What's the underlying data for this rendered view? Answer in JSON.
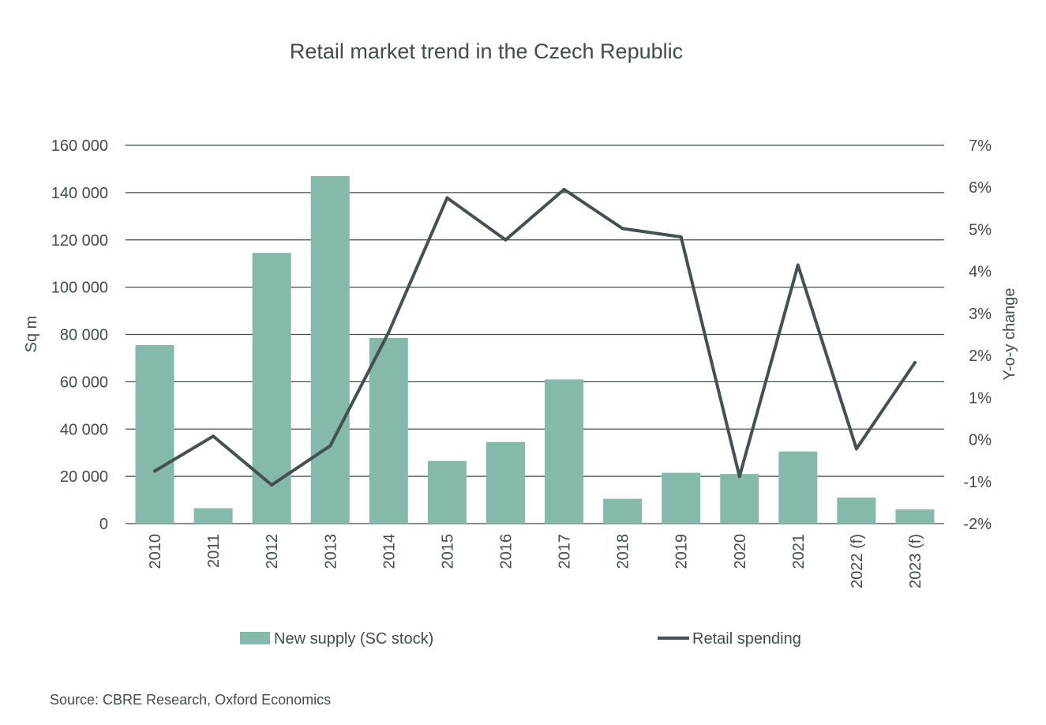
{
  "chart_data": {
    "type": "bar+line",
    "title": "Retail market trend in the Czech Republic",
    "categories": [
      "2010",
      "2011",
      "2012",
      "2013",
      "2014",
      "2015",
      "2016",
      "2017",
      "2018",
      "2019",
      "2020",
      "2021",
      "2022 (f)",
      "2023 (f)"
    ],
    "series": [
      {
        "name": "New supply (SC stock)",
        "type": "bar",
        "axis": "left",
        "color": "#84b9ab",
        "values": [
          75500,
          6500,
          114500,
          147000,
          78500,
          26500,
          34500,
          61000,
          10500,
          21500,
          21000,
          30500,
          11000,
          6000
        ]
      },
      {
        "name": "Retail spending",
        "type": "line",
        "axis": "right",
        "color": "#435152",
        "values": [
          -0.75,
          0.08,
          -1.08,
          -0.15,
          2.55,
          5.75,
          4.75,
          5.95,
          5.02,
          4.82,
          -0.88,
          4.15,
          -0.22,
          1.83
        ]
      }
    ],
    "y_left": {
      "label": "Sq m",
      "min": 0,
      "max": 160000,
      "ticks": [
        0,
        20000,
        40000,
        60000,
        80000,
        100000,
        120000,
        140000,
        160000
      ],
      "tick_labels": [
        "0",
        "20 000",
        "40 000",
        "60 000",
        "80 000",
        "100 000",
        "120 000",
        "140 000",
        "160 000"
      ]
    },
    "y_right": {
      "label": "Y-o-y change",
      "min": -2,
      "max": 7,
      "ticks": [
        -2,
        -1,
        0,
        1,
        2,
        3,
        4,
        5,
        6,
        7
      ],
      "tick_labels": [
        "-2%",
        "-1%",
        "0%",
        "1%",
        "2%",
        "3%",
        "4%",
        "5%",
        "6%",
        "7%"
      ]
    },
    "grid": true,
    "legend": "bottom",
    "source": "Source: CBRE Research, Oxford Economics"
  }
}
